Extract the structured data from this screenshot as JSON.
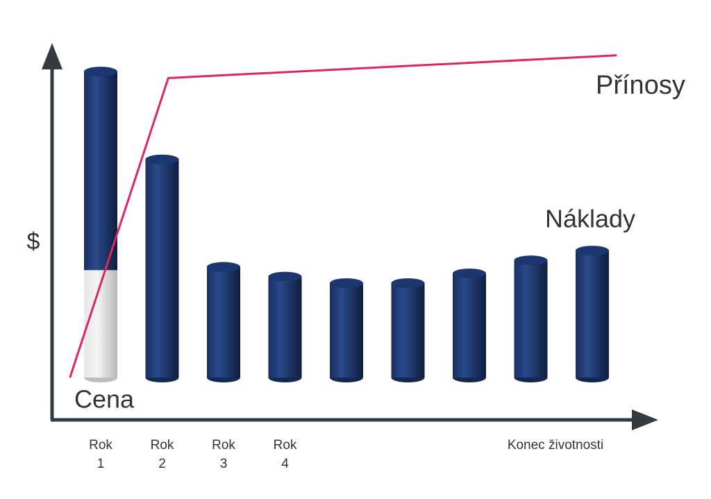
{
  "chart_data": {
    "type": "bar",
    "y_label": "$",
    "categories": [
      "Rok 1",
      "Rok 2",
      "Rok 3",
      "Rok 4",
      null,
      null,
      null,
      null,
      "Konec životnosti"
    ],
    "series": [
      {
        "name": "Cena",
        "color": "#d9d9d9",
        "values": [
          33,
          null,
          null,
          null,
          null,
          null,
          null,
          null,
          null
        ]
      },
      {
        "name": "Náklady",
        "color": "#1c3770",
        "values": [
          61,
          67,
          34,
          31,
          29,
          29,
          32,
          36,
          39
        ]
      }
    ],
    "lines": [
      {
        "name": "Přínosy",
        "color": "#e0245e",
        "x": [
          -0.5,
          1.1,
          8.4
        ],
        "values": [
          0,
          92,
          99
        ]
      }
    ],
    "ylim": [
      -13,
      100
    ]
  }
}
